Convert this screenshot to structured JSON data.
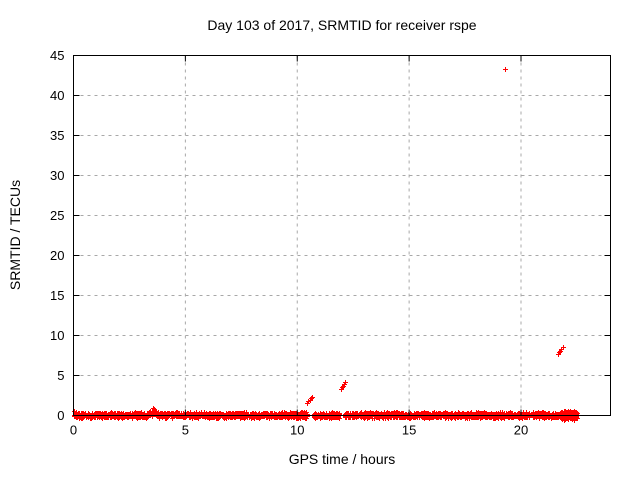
{
  "chart_data": {
    "type": "scatter",
    "title": "Day 103 of 2017, SRMTID for receiver rspe",
    "xlabel": "GPS time / hours",
    "ylabel": "SRMTID / TECUs",
    "xlim": [
      0,
      24
    ],
    "ylim": [
      0,
      45
    ],
    "xticks": [
      0,
      5,
      10,
      15,
      20
    ],
    "yticks": [
      0,
      5,
      10,
      15,
      20,
      25,
      30,
      35,
      40,
      45
    ],
    "grid": true,
    "legend": "none",
    "marker": "plus",
    "marker_color": "#ff0000",
    "grid_color": "#a8a8a8",
    "axis_color": "#000000",
    "background_color": "#ffffff",
    "series_name": "SRMTID",
    "baseline_band": {
      "x_start": 0,
      "x_end": 22.5,
      "y_min": -0.35,
      "y_max": 0.45,
      "points_per_hour": 135,
      "gaps": [
        [
          10.45,
          10.72
        ],
        [
          11.9,
          12.12
        ],
        [
          20.38,
          20.5
        ]
      ],
      "bumps": [
        {
          "x_center": 3.55,
          "width": 0.3,
          "y_peak": 0.55
        }
      ],
      "dense_end": {
        "x_start": 21.78,
        "x_end": 22.5,
        "extra_points": 260,
        "y_min": -0.55,
        "y_max": 0.6
      }
    },
    "outlier_points": [
      {
        "x": 10.45,
        "y": 1.6
      },
      {
        "x": 10.5,
        "y": 1.8
      },
      {
        "x": 10.55,
        "y": 2.0
      },
      {
        "x": 10.6,
        "y": 2.15
      },
      {
        "x": 10.65,
        "y": 2.3
      },
      {
        "x": 11.95,
        "y": 3.3
      },
      {
        "x": 12.0,
        "y": 3.55
      },
      {
        "x": 12.05,
        "y": 3.75
      },
      {
        "x": 12.1,
        "y": 4.0
      },
      {
        "x": 12.15,
        "y": 4.2
      },
      {
        "x": 19.3,
        "y": 43.3
      },
      {
        "x": 21.65,
        "y": 7.7
      },
      {
        "x": 21.7,
        "y": 7.9
      },
      {
        "x": 21.75,
        "y": 8.1
      },
      {
        "x": 21.8,
        "y": 8.3
      },
      {
        "x": 21.87,
        "y": 8.55
      }
    ]
  }
}
